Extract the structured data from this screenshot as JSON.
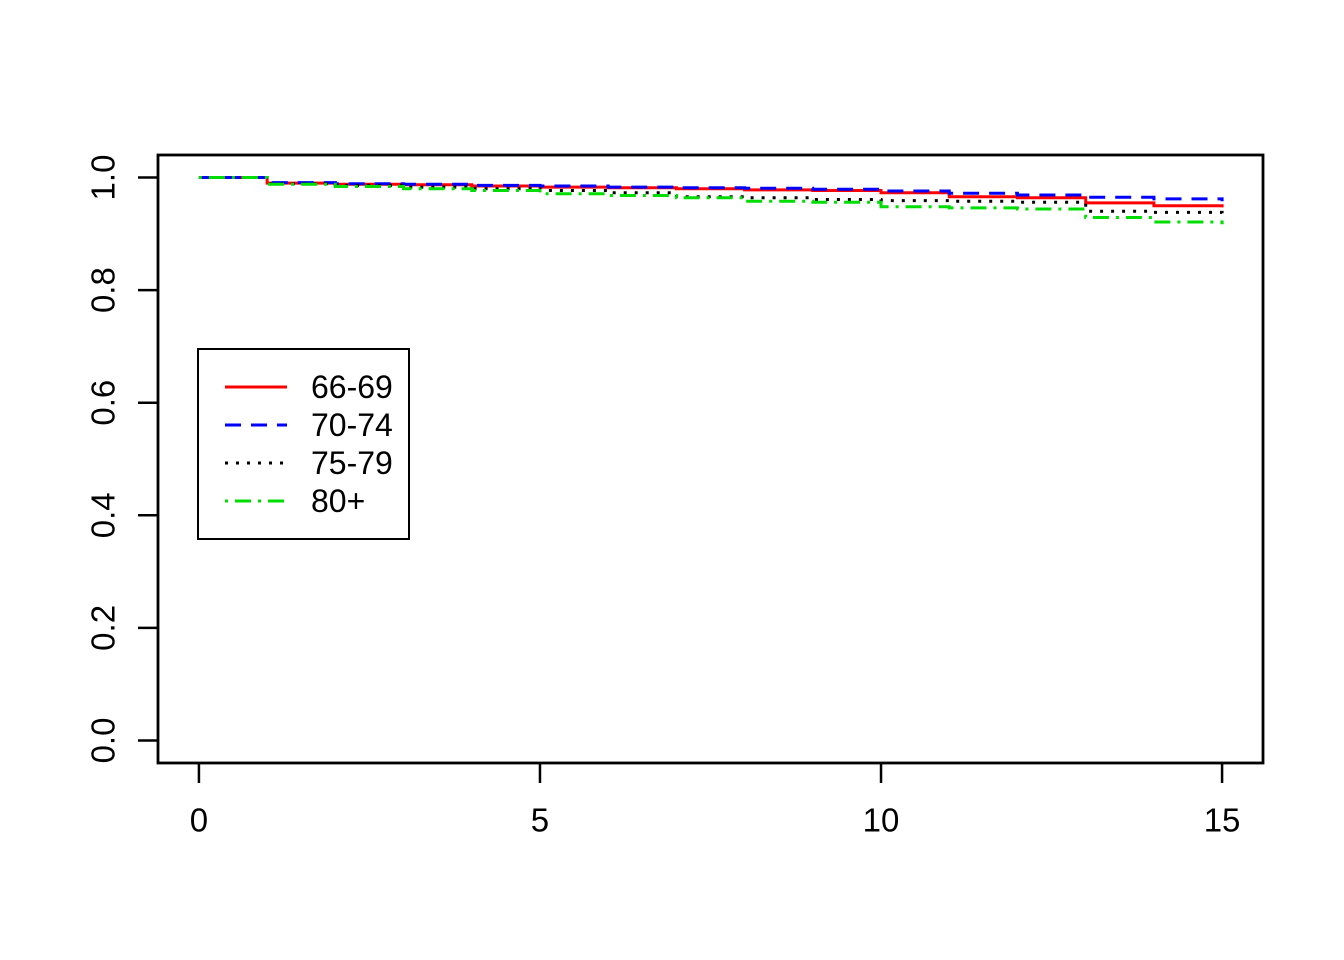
{
  "chart_data": {
    "type": "line",
    "subtype": "kaplan-meier-step",
    "title": "",
    "xlabel": "",
    "ylabel": "",
    "background": "#FFFFFF",
    "axis_color": "#000000",
    "grid": false,
    "xlim": [
      -0.6,
      15.6
    ],
    "ylim": [
      -0.04,
      1.04
    ],
    "x_ticks": [
      "0",
      "5",
      "10",
      "15"
    ],
    "x_tick_values": [
      0,
      5,
      10,
      15
    ],
    "y_ticks": [
      "0.0",
      "0.2",
      "0.4",
      "0.6",
      "0.8",
      "1.0"
    ],
    "y_tick_values": [
      0.0,
      0.2,
      0.4,
      0.6,
      0.8,
      1.0
    ],
    "x": [
      0,
      1,
      2,
      3,
      4,
      5,
      6,
      7,
      8,
      9,
      10,
      11,
      12,
      13,
      14,
      15
    ],
    "series": [
      {
        "name": "66-69",
        "color": "#FF0000",
        "linetype": "solid",
        "values": [
          1.0,
          0.99,
          0.988,
          0.987,
          0.985,
          0.983,
          0.982,
          0.98,
          0.978,
          0.977,
          0.973,
          0.966,
          0.964,
          0.955,
          0.95,
          0.947
        ]
      },
      {
        "name": "70-74",
        "color": "#0000FF",
        "linetype": "dashed",
        "values": [
          1.0,
          0.991,
          0.989,
          0.988,
          0.986,
          0.985,
          0.983,
          0.982,
          0.981,
          0.979,
          0.976,
          0.972,
          0.969,
          0.965,
          0.962,
          0.958
        ]
      },
      {
        "name": "75-79",
        "color": "#000000",
        "linetype": "dotted",
        "values": [
          1.0,
          0.989,
          0.986,
          0.983,
          0.98,
          0.977,
          0.973,
          0.966,
          0.964,
          0.961,
          0.959,
          0.958,
          0.956,
          0.94,
          0.938,
          0.936
        ]
      },
      {
        "name": "80+",
        "color": "#00DD00",
        "linetype": "dotdash",
        "values": [
          1.0,
          0.988,
          0.984,
          0.98,
          0.977,
          0.971,
          0.968,
          0.964,
          0.958,
          0.956,
          0.948,
          0.946,
          0.944,
          0.929,
          0.921,
          0.917
        ]
      }
    ],
    "legend": {
      "position": "left-middle",
      "entries": [
        "66-69",
        "70-74",
        "75-79",
        "80+"
      ]
    }
  }
}
